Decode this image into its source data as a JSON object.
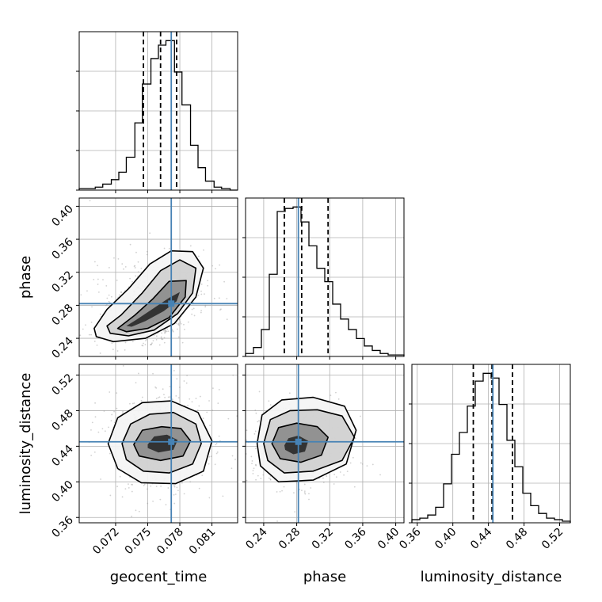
{
  "chart_data": {
    "type": "corner",
    "colors": {
      "truth": "#4682b4",
      "hist": "#000000",
      "grid": "#b0b0b0",
      "quantile": "#000000"
    },
    "parameters": [
      {
        "name": "geocent_time",
        "label": "geocent_time",
        "range": [
          0.0686,
          0.0834
        ],
        "ticks": [
          0.072,
          0.075,
          0.078,
          0.081
        ],
        "tick_labels": [
          "0.072",
          "0.075",
          "0.078",
          "0.081"
        ],
        "truth": 0.0772,
        "quantiles": [
          0.0746,
          0.0762,
          0.0777
        ]
      },
      {
        "name": "phase",
        "label": "phase",
        "range": [
          0.218,
          0.41
        ],
        "ticks": [
          0.24,
          0.28,
          0.32,
          0.36,
          0.4
        ],
        "tick_labels": [
          "0.24",
          "0.28",
          "0.32",
          "0.36",
          "0.40"
        ],
        "truth": 0.282,
        "quantiles": [
          0.265,
          0.286,
          0.318
        ]
      },
      {
        "name": "luminosity_distance",
        "label": "luminosity_distance",
        "range": [
          0.354,
          0.532
        ],
        "ticks": [
          0.36,
          0.4,
          0.44,
          0.48,
          0.52
        ],
        "tick_labels": [
          "0.36",
          "0.40",
          "0.44",
          "0.48",
          "0.52"
        ],
        "truth": 0.445,
        "quantiles": [
          0.423,
          0.444,
          0.467
        ]
      }
    ],
    "histograms": [
      {
        "param": "geocent_time",
        "bin_edges": [
          0.0686,
          0.0693,
          0.0701,
          0.0708,
          0.0716,
          0.0723,
          0.073,
          0.0738,
          0.0745,
          0.0753,
          0.076,
          0.0767,
          0.0775,
          0.0782,
          0.079,
          0.0797,
          0.0804,
          0.0812,
          0.0819,
          0.0827,
          0.0834
        ],
        "counts": [
          0.01,
          0.01,
          0.02,
          0.04,
          0.07,
          0.12,
          0.22,
          0.45,
          0.71,
          0.88,
          0.97,
          1.0,
          0.79,
          0.57,
          0.3,
          0.15,
          0.06,
          0.02,
          0.01,
          0.0
        ]
      },
      {
        "param": "phase",
        "bin_edges": [
          0.218,
          0.2276,
          0.2372,
          0.2468,
          0.2564,
          0.266,
          0.2756,
          0.2852,
          0.2948,
          0.3044,
          0.314,
          0.3236,
          0.3332,
          0.3428,
          0.3524,
          0.362,
          0.3716,
          0.3812,
          0.3908,
          0.4004,
          0.41
        ],
        "counts": [
          0.02,
          0.06,
          0.18,
          0.55,
          0.97,
          0.99,
          1.0,
          0.9,
          0.74,
          0.59,
          0.5,
          0.35,
          0.25,
          0.18,
          0.12,
          0.07,
          0.04,
          0.02,
          0.01,
          0.01
        ]
      },
      {
        "param": "luminosity_distance",
        "bin_edges": [
          0.354,
          0.3629,
          0.3718,
          0.3807,
          0.3896,
          0.3985,
          0.4074,
          0.4163,
          0.4252,
          0.4341,
          0.443,
          0.4519,
          0.4608,
          0.4697,
          0.4786,
          0.4875,
          0.4964,
          0.5053,
          0.5142,
          0.5231,
          0.532
        ],
        "counts": [
          0.02,
          0.03,
          0.05,
          0.1,
          0.25,
          0.44,
          0.58,
          0.75,
          0.91,
          0.96,
          0.93,
          0.76,
          0.53,
          0.36,
          0.19,
          0.11,
          0.06,
          0.03,
          0.02,
          0.01
        ]
      }
    ],
    "pairs": [
      {
        "x": "geocent_time",
        "y": "phase",
        "center": [
          0.0758,
          0.274
        ],
        "contours": [
          [
            [
              0.073,
              0.255
            ],
            [
              0.074,
              0.263
            ],
            [
              0.0755,
              0.276
            ],
            [
              0.077,
              0.289
            ],
            [
              0.078,
              0.296
            ],
            [
              0.0777,
              0.285
            ],
            [
              0.0765,
              0.273
            ],
            [
              0.0748,
              0.261
            ],
            [
              0.0735,
              0.254
            ]
          ],
          [
            [
              0.0722,
              0.252
            ],
            [
              0.0738,
              0.268
            ],
            [
              0.0755,
              0.288
            ],
            [
              0.077,
              0.309
            ],
            [
              0.0786,
              0.31
            ],
            [
              0.0785,
              0.29
            ],
            [
              0.077,
              0.265
            ],
            [
              0.075,
              0.252
            ],
            [
              0.073,
              0.248
            ]
          ],
          [
            [
              0.0712,
              0.255
            ],
            [
              0.0725,
              0.268
            ],
            [
              0.0745,
              0.295
            ],
            [
              0.0762,
              0.322
            ],
            [
              0.078,
              0.335
            ],
            [
              0.0795,
              0.325
            ],
            [
              0.0792,
              0.295
            ],
            [
              0.0778,
              0.27
            ],
            [
              0.0756,
              0.25
            ],
            [
              0.0732,
              0.243
            ],
            [
              0.0715,
              0.246
            ]
          ],
          [
            [
              0.07,
              0.252
            ],
            [
              0.0712,
              0.275
            ],
            [
              0.0732,
              0.3
            ],
            [
              0.0752,
              0.33
            ],
            [
              0.0772,
              0.346
            ],
            [
              0.0792,
              0.345
            ],
            [
              0.0802,
              0.325
            ],
            [
              0.0795,
              0.29
            ],
            [
              0.0775,
              0.258
            ],
            [
              0.0748,
              0.24
            ],
            [
              0.0718,
              0.236
            ],
            [
              0.0702,
              0.242
            ]
          ]
        ]
      },
      {
        "x": "geocent_time",
        "y": "luminosity_distance",
        "center": [
          0.0762,
          0.443
        ],
        "contours": [
          [
            [
              0.075,
              0.442
            ],
            [
              0.0756,
              0.451
            ],
            [
              0.0768,
              0.453
            ],
            [
              0.0778,
              0.447
            ],
            [
              0.0774,
              0.436
            ],
            [
              0.076,
              0.433
            ],
            [
              0.075,
              0.438
            ]
          ],
          [
            [
              0.0737,
              0.442
            ],
            [
              0.0745,
              0.458
            ],
            [
              0.0763,
              0.462
            ],
            [
              0.0781,
              0.46
            ],
            [
              0.079,
              0.446
            ],
            [
              0.0783,
              0.429
            ],
            [
              0.0762,
              0.424
            ],
            [
              0.0742,
              0.429
            ]
          ],
          [
            [
              0.0726,
              0.443
            ],
            [
              0.0734,
              0.465
            ],
            [
              0.0752,
              0.476
            ],
            [
              0.0774,
              0.478
            ],
            [
              0.0795,
              0.465
            ],
            [
              0.08,
              0.443
            ],
            [
              0.0792,
              0.42
            ],
            [
              0.077,
              0.41
            ],
            [
              0.0746,
              0.412
            ],
            [
              0.073,
              0.425
            ]
          ],
          [
            [
              0.0713,
              0.443
            ],
            [
              0.0722,
              0.472
            ],
            [
              0.0745,
              0.489
            ],
            [
              0.0772,
              0.491
            ],
            [
              0.0797,
              0.478
            ],
            [
              0.081,
              0.446
            ],
            [
              0.0802,
              0.412
            ],
            [
              0.0776,
              0.398
            ],
            [
              0.0744,
              0.399
            ],
            [
              0.0722,
              0.415
            ]
          ]
        ]
      },
      {
        "x": "phase",
        "y": "luminosity_distance",
        "center": [
          0.276,
          0.44
        ],
        "contours": [
          [
            [
              0.265,
              0.441
            ],
            [
              0.27,
              0.449
            ],
            [
              0.282,
              0.452
            ],
            [
              0.294,
              0.446
            ],
            [
              0.29,
              0.434
            ],
            [
              0.276,
              0.431
            ],
            [
              0.266,
              0.436
            ]
          ],
          [
            [
              0.25,
              0.443
            ],
            [
              0.258,
              0.461
            ],
            [
              0.28,
              0.466
            ],
            [
              0.305,
              0.462
            ],
            [
              0.318,
              0.45
            ],
            [
              0.31,
              0.43
            ],
            [
              0.285,
              0.422
            ],
            [
              0.26,
              0.426
            ]
          ],
          [
            [
              0.24,
              0.443
            ],
            [
              0.248,
              0.47
            ],
            [
              0.272,
              0.48
            ],
            [
              0.305,
              0.481
            ],
            [
              0.335,
              0.474
            ],
            [
              0.35,
              0.45
            ],
            [
              0.335,
              0.424
            ],
            [
              0.3,
              0.412
            ],
            [
              0.265,
              0.41
            ],
            [
              0.245,
              0.424
            ]
          ],
          [
            [
              0.232,
              0.443
            ],
            [
              0.238,
              0.475
            ],
            [
              0.262,
              0.492
            ],
            [
              0.3,
              0.495
            ],
            [
              0.338,
              0.485
            ],
            [
              0.352,
              0.458
            ],
            [
              0.34,
              0.42
            ],
            [
              0.3,
              0.402
            ],
            [
              0.258,
              0.4
            ],
            [
              0.236,
              0.418
            ]
          ]
        ]
      }
    ]
  }
}
